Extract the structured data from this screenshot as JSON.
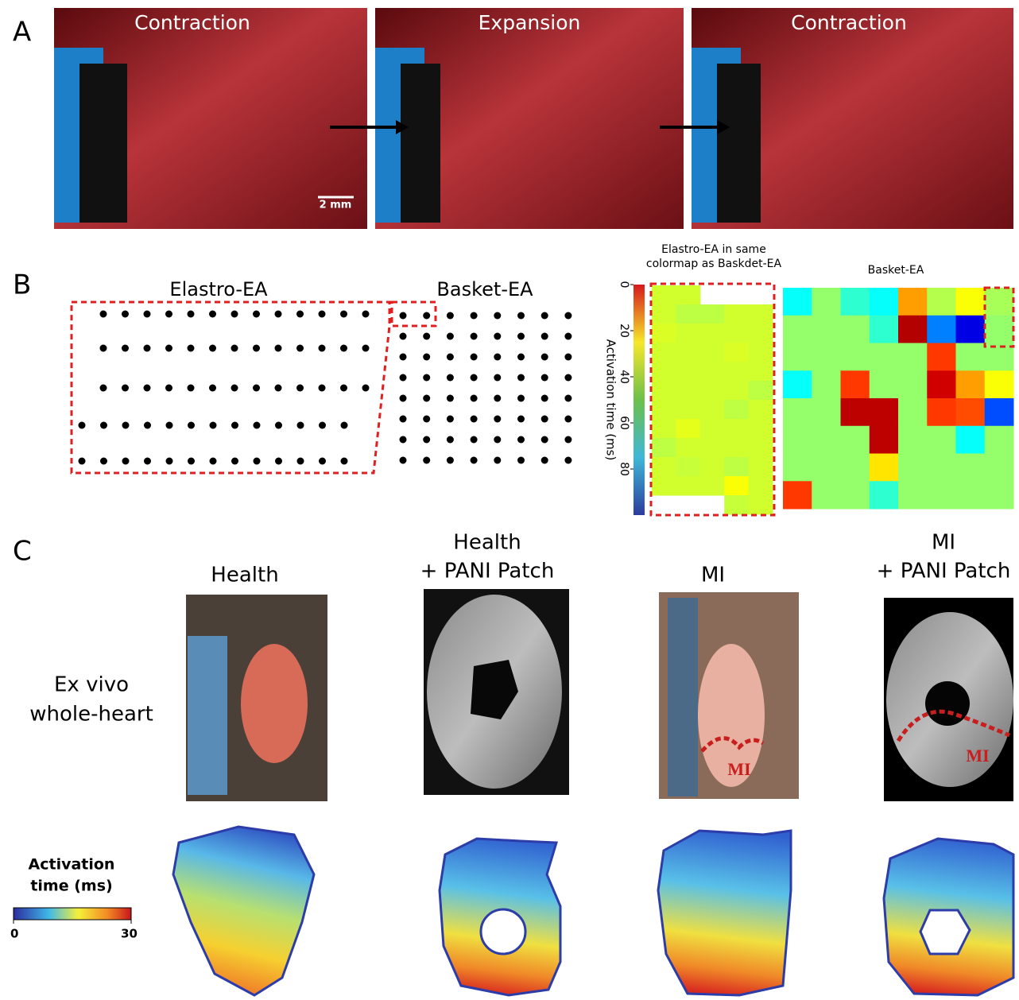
{
  "panels": {
    "a": {
      "label": "A",
      "frames": [
        "Contraction",
        "Expansion",
        "Contraction"
      ],
      "scale_bar": "2 mm"
    },
    "b": {
      "label": "B",
      "array_titles": [
        "Elastro-EA",
        "Basket-EA"
      ],
      "heatmaps": {
        "type": "heatmap",
        "elastro_title": [
          "Elastro-EA in same",
          "colormap as Baskdet-EA"
        ],
        "basket_title": "Basket-EA",
        "colorbar_label": "Activation time (ms)",
        "clim": [
          0,
          100
        ],
        "cticks": [
          0,
          20,
          40,
          60,
          80
        ],
        "elastro": [
          [
            42,
            42,
            null,
            null,
            null
          ],
          [
            42,
            44,
            44,
            42,
            42
          ],
          [
            41,
            42,
            42,
            42,
            42
          ],
          [
            42,
            42,
            42,
            41,
            42
          ],
          [
            42,
            42,
            42,
            42,
            42
          ],
          [
            42,
            42,
            42,
            42,
            44
          ],
          [
            42,
            42,
            42,
            44,
            42
          ],
          [
            42,
            40,
            42,
            42,
            42
          ],
          [
            44,
            42,
            42,
            42,
            42
          ],
          [
            42,
            43,
            42,
            44,
            42
          ],
          [
            42,
            42,
            42,
            38,
            42
          ],
          [
            null,
            null,
            null,
            43,
            42
          ]
        ],
        "basket": [
          [
            62,
            48,
            58,
            62,
            28,
            45,
            38,
            46
          ],
          [
            48,
            48,
            48,
            58,
            5,
            75,
            90,
            48
          ],
          [
            48,
            48,
            48,
            48,
            48,
            18,
            48,
            48
          ],
          [
            62,
            48,
            18,
            48,
            48,
            8,
            28,
            38
          ],
          [
            48,
            48,
            6,
            6,
            48,
            18,
            20,
            80
          ],
          [
            48,
            48,
            48,
            6,
            48,
            48,
            62,
            48
          ],
          [
            48,
            48,
            48,
            35,
            48,
            48,
            48,
            48
          ],
          [
            18,
            48,
            48,
            58,
            48,
            48,
            48,
            48
          ]
        ]
      }
    },
    "c": {
      "label": "C",
      "columns": [
        [
          "Health"
        ],
        [
          "Health",
          "+ PANI Patch"
        ],
        [
          "MI"
        ],
        [
          "MI",
          "+ PANI Patch"
        ]
      ],
      "row_label": [
        "Ex vivo",
        "whole-heart"
      ],
      "infarct_labels": [
        "MI",
        "MI"
      ],
      "colorbar_title": [
        "Activation",
        "time (ms)"
      ],
      "colorbar_ticks": [
        0,
        30
      ]
    }
  }
}
